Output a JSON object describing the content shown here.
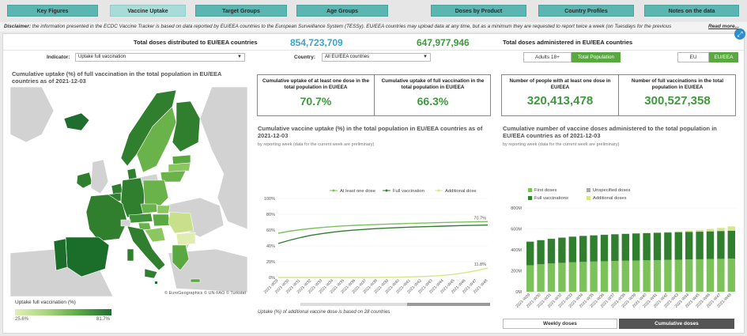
{
  "nav": {
    "tabs": [
      {
        "label": "Key Figures"
      },
      {
        "label": "Vaccine Uptake"
      },
      {
        "label": "Target Groups"
      },
      {
        "label": "Age Groups"
      },
      {
        "label": "Doses by Product"
      },
      {
        "label": "Country Profiles"
      },
      {
        "label": "Notes on the data"
      }
    ]
  },
  "disclaimer": {
    "bold": "Disclaimer:",
    "text": " the information presented in the ECDC Vaccine Tracker is based on data reported by EU/EEA countries to the European Surveillance System (TESSy). EU/EEA countries may upload data at any time, but as a minimum they are requested to report twice a week (on Tuesdays for the previous",
    "read_more": "Read more..."
  },
  "totals": {
    "distributed_label": "Total doses distributed to EU/EEA countries",
    "distributed_value": "854,723,709",
    "administered_value": "647,977,946",
    "administered_label": "Total doses administered in EU/EEA countries"
  },
  "filters": {
    "indicator_label": "Indicator:",
    "indicator_value": "Uptake full vaccination",
    "country_label": "Country:",
    "country_value": "All EU/EEA countries",
    "population_options": [
      "Adults 18+",
      "Total Population"
    ],
    "region_options": [
      "EU",
      "EU/EEA"
    ]
  },
  "map": {
    "title": "Cumulative uptake (%) of full vaccination in the total population in EU/EEA countries as of 2021-12-03",
    "credit": "© EuroGeographics © UN-FAO © Turkstat",
    "legend_title": "Uptake full vaccination (%)",
    "legend_min": "25.6%",
    "legend_max": "81.7%",
    "colors": {
      "low": "#d9e8a0",
      "high": "#1a6e2a",
      "none": "#d2d2d2"
    }
  },
  "kpis_uptake": [
    {
      "label": "Cumulative uptake of at least one dose in the total population in EU/EEA",
      "value": "70.7%"
    },
    {
      "label": "Cumulative uptake of full vaccination in the total population in EU/EEA",
      "value": "66.3%"
    }
  ],
  "kpis_people": [
    {
      "label": "Number of people with at least one dose in EU/EEA",
      "value": "320,413,478"
    },
    {
      "label": "Number of full vaccinations in the total population in EU/EEA",
      "value": "300,527,358"
    }
  ],
  "uptake_chart": {
    "title": "Cumulative vaccine uptake (%) in the total population in EU/EEA countries as of 2021-12-03",
    "subtitle": "by reporting week (data for the current week are preliminary)",
    "footnote": "Uptake (%) of additional vaccine dose is based on 28 countries"
  },
  "doses_chart": {
    "title": "Cumulative number of vaccine doses administered to the total population in EU/EEA countries as of 2021-12-03",
    "subtitle": "by reporting week (data for the current week are preliminary)",
    "buttons": [
      "Weekly doses",
      "Cumulative doses"
    ]
  },
  "chart_data": [
    {
      "type": "line",
      "x": [
        "2021-W29",
        "2021-W30",
        "2021-W31",
        "2021-W32",
        "2021-W33",
        "2021-W34",
        "2021-W35",
        "2021-W36",
        "2021-W37",
        "2021-W38",
        "2021-W39",
        "2021-W40",
        "2021-W41",
        "2021-W42",
        "2021-W43",
        "2021-W44",
        "2021-W45",
        "2021-W46",
        "2021-W47",
        "2021-W48"
      ],
      "ylim": [
        0,
        100
      ],
      "yticks": [
        "0%",
        "20%",
        "40%",
        "60%",
        "80%",
        "100%"
      ],
      "series": [
        {
          "name": "At least one dose",
          "color": "#7cc25a",
          "values": [
            56,
            58.5,
            60.5,
            62,
            63.3,
            64.4,
            65.3,
            66,
            66.6,
            67.1,
            67.6,
            68,
            68.4,
            68.8,
            69.2,
            69.6,
            69.9,
            70.2,
            70.5,
            70.7
          ],
          "end_label": "70.7%"
        },
        {
          "name": "Full vaccination",
          "color": "#2f7f2f",
          "values": [
            43,
            47,
            50.5,
            53.4,
            55.6,
            57.4,
            58.9,
            60.1,
            61.1,
            61.9,
            62.6,
            63.2,
            63.7,
            64.2,
            64.6,
            65,
            65.4,
            65.8,
            66.1,
            66.3
          ]
        },
        {
          "name": "Additional dose",
          "color": "#d6e68a",
          "values": [
            0,
            0,
            0,
            0,
            0,
            0,
            0,
            0,
            0,
            0.1,
            0.3,
            0.5,
            0.8,
            1.2,
            1.8,
            2.7,
            4.2,
            6.2,
            8.8,
            11.8
          ],
          "end_label": "11.8%"
        }
      ]
    },
    {
      "type": "bar",
      "stacked": true,
      "x": [
        "2021-W29",
        "2021-W30",
        "2021-W31",
        "2021-W32",
        "2021-W33",
        "2021-W34",
        "2021-W35",
        "2021-W36",
        "2021-W37",
        "2021-W38",
        "2021-W39",
        "2021-W40",
        "2021-W41",
        "2021-W42",
        "2021-W43",
        "2021-W44",
        "2021-W45",
        "2021-W46",
        "2021-W47",
        "2021-W48"
      ],
      "ylim": [
        0,
        800
      ],
      "yticks": [
        "0M",
        "200M",
        "400M",
        "600M",
        "800M"
      ],
      "series": [
        {
          "name": "First doses",
          "color": "#7cc25a",
          "values": [
            253,
            262,
            270,
            276,
            281,
            285,
            288,
            291,
            294,
            296,
            298,
            300,
            302,
            304,
            306,
            308,
            310,
            312,
            314,
            316
          ]
        },
        {
          "name": "Full vaccinations",
          "color": "#2f7f2f",
          "values": [
            225,
            230,
            235,
            240,
            244,
            247,
            250,
            252,
            254,
            256,
            258,
            259,
            260,
            261,
            262,
            263,
            263,
            264,
            265,
            266
          ]
        },
        {
          "name": "Unspecified doses",
          "color": "#aaaaaa",
          "values": [
            2,
            2,
            2,
            2,
            2,
            2,
            2,
            2,
            2,
            2,
            2,
            2,
            2,
            2,
            2,
            2,
            2,
            2,
            2,
            2
          ]
        },
        {
          "name": "Additional doses",
          "color": "#d6e68a",
          "values": [
            0,
            0,
            0,
            0,
            0,
            0,
            0,
            0,
            0,
            0,
            1,
            2,
            3,
            5,
            7,
            10,
            14,
            20,
            28,
            40
          ]
        }
      ]
    }
  ]
}
